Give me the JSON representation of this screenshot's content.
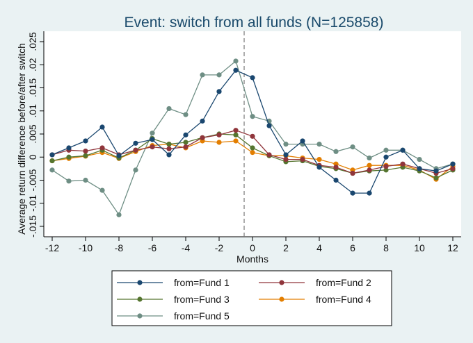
{
  "chart_data": {
    "type": "line",
    "title": "Event: switch from all funds (N=125858)",
    "xlabel": "Months",
    "ylabel": "Average return difference before/after switch",
    "x": [
      -12,
      -11,
      -10,
      -9,
      -8,
      -7,
      -6,
      -5,
      -4,
      -3,
      -2,
      -1,
      0,
      1,
      2,
      3,
      4,
      5,
      6,
      7,
      8,
      9,
      10,
      11,
      12
    ],
    "xlim": [
      -12,
      12
    ],
    "ylim": [
      -0.015,
      0.025
    ],
    "xticks": [
      -12,
      -10,
      -8,
      -6,
      -4,
      -2,
      0,
      2,
      4,
      6,
      8,
      10,
      12
    ],
    "xtick_labels": [
      "-12",
      "-10",
      "-8",
      "-6",
      "-4",
      "-2",
      "0",
      "2",
      "4",
      "6",
      "8",
      "10",
      "12"
    ],
    "yticks": [
      -0.015,
      -0.01,
      -0.005,
      0,
      0.005,
      0.01,
      0.015,
      0.02,
      0.025
    ],
    "ytick_labels": [
      "-.015",
      "-.01",
      "-.005",
      "0",
      ".005",
      ".01",
      ".015",
      ".02",
      ".025"
    ],
    "vline_x": -0.5,
    "grid": false,
    "legend_position": "bottom",
    "series": [
      {
        "name": "from=Fund 1",
        "color": "#1a476f",
        "values": [
          0.0005,
          0.002,
          0.0035,
          0.0065,
          0.0003,
          0.003,
          0.0038,
          0.0005,
          0.0048,
          0.0078,
          0.0142,
          0.0188,
          0.0172,
          0.0068,
          0.0005,
          0.0035,
          -0.0022,
          -0.005,
          -0.0078,
          -0.0078,
          0.0,
          0.0015,
          -0.0025,
          -0.003,
          -0.0015
        ]
      },
      {
        "name": "from=Fund 2",
        "color": "#90353b",
        "values": [
          0.0005,
          0.0015,
          0.0013,
          0.002,
          0.0005,
          0.0015,
          0.0022,
          0.0018,
          0.0022,
          0.0042,
          0.0048,
          0.0058,
          0.0045,
          0.0005,
          -0.0005,
          -0.0005,
          -0.0018,
          -0.0022,
          -0.0035,
          -0.0028,
          -0.002,
          -0.0015,
          -0.0025,
          -0.0035,
          -0.0025
        ]
      },
      {
        "name": "from=Fund 3",
        "color": "#55752f",
        "values": [
          -0.0008,
          0.0,
          0.0003,
          0.0015,
          -0.0002,
          0.0015,
          0.004,
          0.0028,
          0.0032,
          0.0042,
          0.005,
          0.0048,
          0.002,
          0.0003,
          -0.001,
          -0.0008,
          -0.002,
          -0.0025,
          -0.0035,
          -0.003,
          -0.0028,
          -0.0022,
          -0.003,
          -0.0045,
          -0.0028
        ]
      },
      {
        "name": "from=Fund 4",
        "color": "#e37e00",
        "values": [
          -0.0008,
          -0.0003,
          0.0002,
          0.001,
          -0.0003,
          0.0012,
          0.0025,
          0.0028,
          0.002,
          0.0035,
          0.0032,
          0.0035,
          0.001,
          0.0003,
          0.0003,
          -0.0002,
          -0.0005,
          -0.0015,
          -0.0028,
          -0.0018,
          -0.0018,
          -0.0018,
          -0.0028,
          -0.0048,
          -0.002
        ]
      },
      {
        "name": "from=Fund 5",
        "color": "#6e8e84",
        "values": [
          -0.0028,
          -0.0052,
          -0.005,
          -0.0072,
          -0.0125,
          -0.0028,
          0.0052,
          0.0105,
          0.0092,
          0.0178,
          0.0178,
          0.0208,
          0.0088,
          0.0078,
          0.0028,
          0.0028,
          0.0028,
          0.0012,
          0.0022,
          -0.0002,
          0.0015,
          0.0015,
          -0.0005,
          -0.0025,
          -0.0015
        ]
      }
    ]
  }
}
